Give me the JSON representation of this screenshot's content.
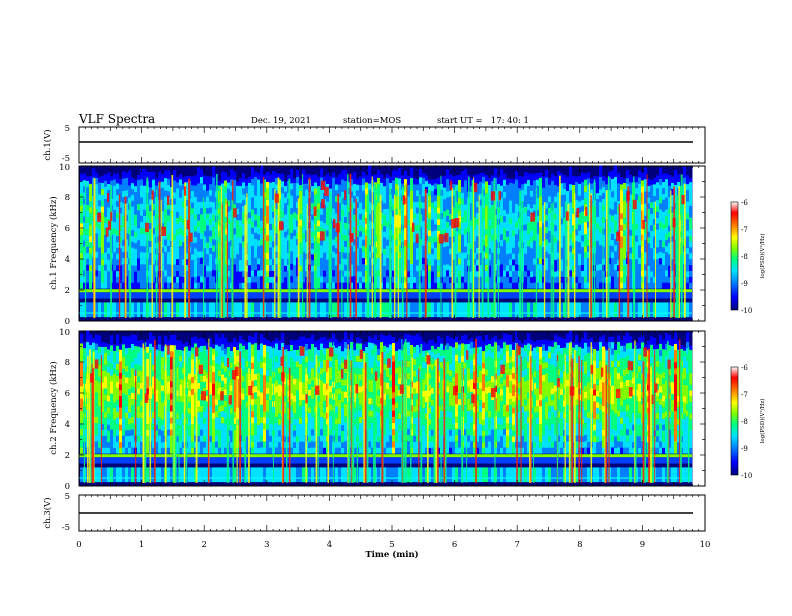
{
  "header": {
    "title": "VLF Spectra",
    "date": "Dec. 19, 2021",
    "station": "station=MOS",
    "start_ut": "start UT =   17: 40: 1"
  },
  "colors": {
    "colormap": [
      "#00007a",
      "#0000ff",
      "#0080ff",
      "#00e0ff",
      "#00ff80",
      "#7fff00",
      "#ffff00",
      "#ff8000",
      "#ff0000",
      "#ffffff"
    ]
  },
  "chart_data": [
    {
      "type": "line",
      "panel": "ch1 waveform",
      "ylabel": "ch.1(V)",
      "ylim": [
        -5,
        5
      ],
      "yticks": [
        "5",
        "-5"
      ],
      "x": [
        0,
        9.8
      ],
      "y": [
        0,
        0
      ]
    },
    {
      "type": "heatmap",
      "panel": "ch1 spectrogram",
      "ylabel": "ch.1 Frequency (kHz)",
      "ylim": [
        0,
        10
      ],
      "yticks": [
        "0",
        "2",
        "4",
        "6",
        "8",
        "10"
      ],
      "xlim": [
        0,
        9.8
      ],
      "colorbar": {
        "label": "log(PSD)(V²/Hz)",
        "range": [
          -10,
          -6
        ],
        "ticks": [
          "-6",
          "-7",
          "-8",
          "-9",
          "-10"
        ]
      }
    },
    {
      "type": "heatmap",
      "panel": "ch2 spectrogram",
      "ylabel": "ch.2 Frequency (kHz)",
      "ylim": [
        0,
        10
      ],
      "yticks": [
        "0",
        "2",
        "4",
        "6",
        "8",
        "10"
      ],
      "xlim": [
        0,
        9.8
      ],
      "colorbar": {
        "label": "log(PSD)(V²/Hz)",
        "range": [
          -10,
          -6
        ],
        "ticks": [
          "-6",
          "-7",
          "-8",
          "-9",
          "-10"
        ]
      }
    },
    {
      "type": "line",
      "panel": "ch3 waveform",
      "ylabel": "ch.3(V)",
      "ylim": [
        -5,
        5
      ],
      "yticks": [
        "5",
        "-5"
      ],
      "x": [
        0,
        9.8
      ],
      "y": [
        0,
        0
      ]
    }
  ],
  "xaxis": {
    "label": "Time (min)",
    "xlim": [
      0,
      10
    ],
    "ticks": [
      "0",
      "1",
      "2",
      "3",
      "4",
      "5",
      "6",
      "7",
      "8",
      "9",
      "10"
    ]
  }
}
